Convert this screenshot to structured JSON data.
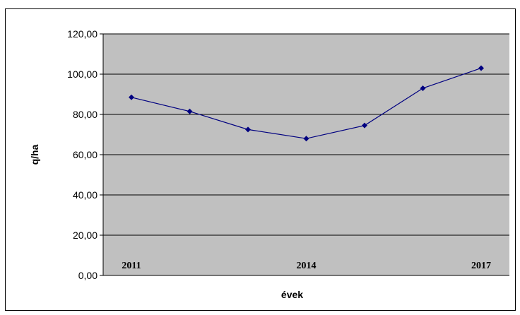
{
  "chart_data": {
    "type": "line",
    "title": "",
    "xlabel": "évek",
    "ylabel": "q/ha",
    "x": [
      2011,
      2012,
      2013,
      2014,
      2015,
      2016,
      2017
    ],
    "x_tick_labels": [
      "2011",
      "2014",
      "2017"
    ],
    "series": [
      {
        "values": [
          88.5,
          81.5,
          72.5,
          68.0,
          74.5,
          93.0,
          103.0
        ],
        "color": "#000080"
      }
    ],
    "ylim": [
      0,
      120
    ],
    "y_ticks": [
      0,
      20,
      40,
      60,
      80,
      100,
      120
    ],
    "y_tick_labels": [
      "0,00",
      "20,00",
      "40,00",
      "60,00",
      "80,00",
      "100,00",
      "120,00"
    ],
    "grid": true,
    "legend": "none",
    "colors": {
      "plot_background": "#c0c0c0",
      "gridline": "#000000",
      "line": "#000080",
      "marker": "#000080"
    }
  }
}
